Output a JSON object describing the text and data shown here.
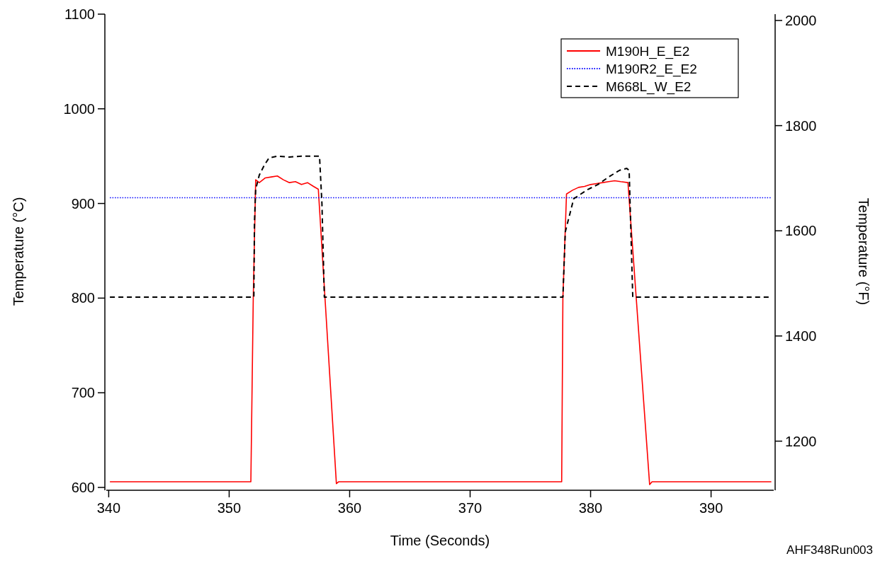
{
  "chart_data": {
    "type": "line",
    "xlabel": "Time (Seconds)",
    "ylabel": "Temperature (°C)",
    "y2label": "Temperature (°F)",
    "annotations": [
      "AHF348Run003"
    ],
    "xlim": [
      339.8,
      395.2
    ],
    "xticks": [
      340,
      350,
      360,
      370,
      380,
      390
    ],
    "ylim": [
      598.5,
      1100
    ],
    "yticks": [
      600,
      700,
      800,
      900,
      1000,
      1100
    ],
    "y2lim": [
      1109.3,
      2012
    ],
    "y2ticks": [
      1200,
      1400,
      1600,
      1800,
      2000
    ],
    "legend": "top right",
    "grid": false,
    "series": [
      {
        "name": "M190H_E_E2",
        "color": "#ff0000",
        "line_style": "solid",
        "x": [
          340.1,
          351.8,
          352.0,
          352.2,
          352.5,
          353,
          353.5,
          354,
          354.5,
          355,
          355.5,
          356,
          356.5,
          357,
          357.4,
          358.9,
          359.1,
          377.6,
          377.7,
          378.0,
          378.5,
          379,
          379.5,
          380,
          380.5,
          381,
          381.5,
          382,
          382.5,
          383.1,
          384.9,
          385.1,
          395.0
        ],
        "values": [
          606,
          606,
          800,
          925,
          922,
          927,
          928,
          929,
          925,
          922,
          923,
          920,
          922,
          918,
          915,
          604,
          606,
          606,
          800,
          910,
          914,
          917,
          918,
          920,
          921,
          922,
          923,
          924,
          923,
          922,
          603,
          606,
          606
        ]
      },
      {
        "name": "M190R2_E_E2",
        "color": "#0000ff",
        "line_style": "dotted",
        "x": [
          340.1,
          395.0
        ],
        "values": [
          906,
          906
        ]
      },
      {
        "name": "M668L_W_E2",
        "color": "#000000",
        "line_style": "dashed",
        "x": [
          340.1,
          352.05,
          352.1,
          352.2,
          352.5,
          352.9,
          353.3,
          354,
          355,
          356,
          357.5,
          357.7,
          357.9,
          377.7,
          377.9,
          378.3,
          378.6,
          379.8,
          380.6,
          381.5,
          382.4,
          383.0,
          383.2,
          383.5,
          395.0
        ],
        "values": [
          801,
          801,
          880,
          915,
          930,
          940,
          948,
          950,
          949,
          950,
          950,
          900,
          801,
          801,
          870,
          890,
          905,
          915,
          920,
          928,
          935,
          937,
          935,
          801,
          801
        ]
      }
    ]
  }
}
